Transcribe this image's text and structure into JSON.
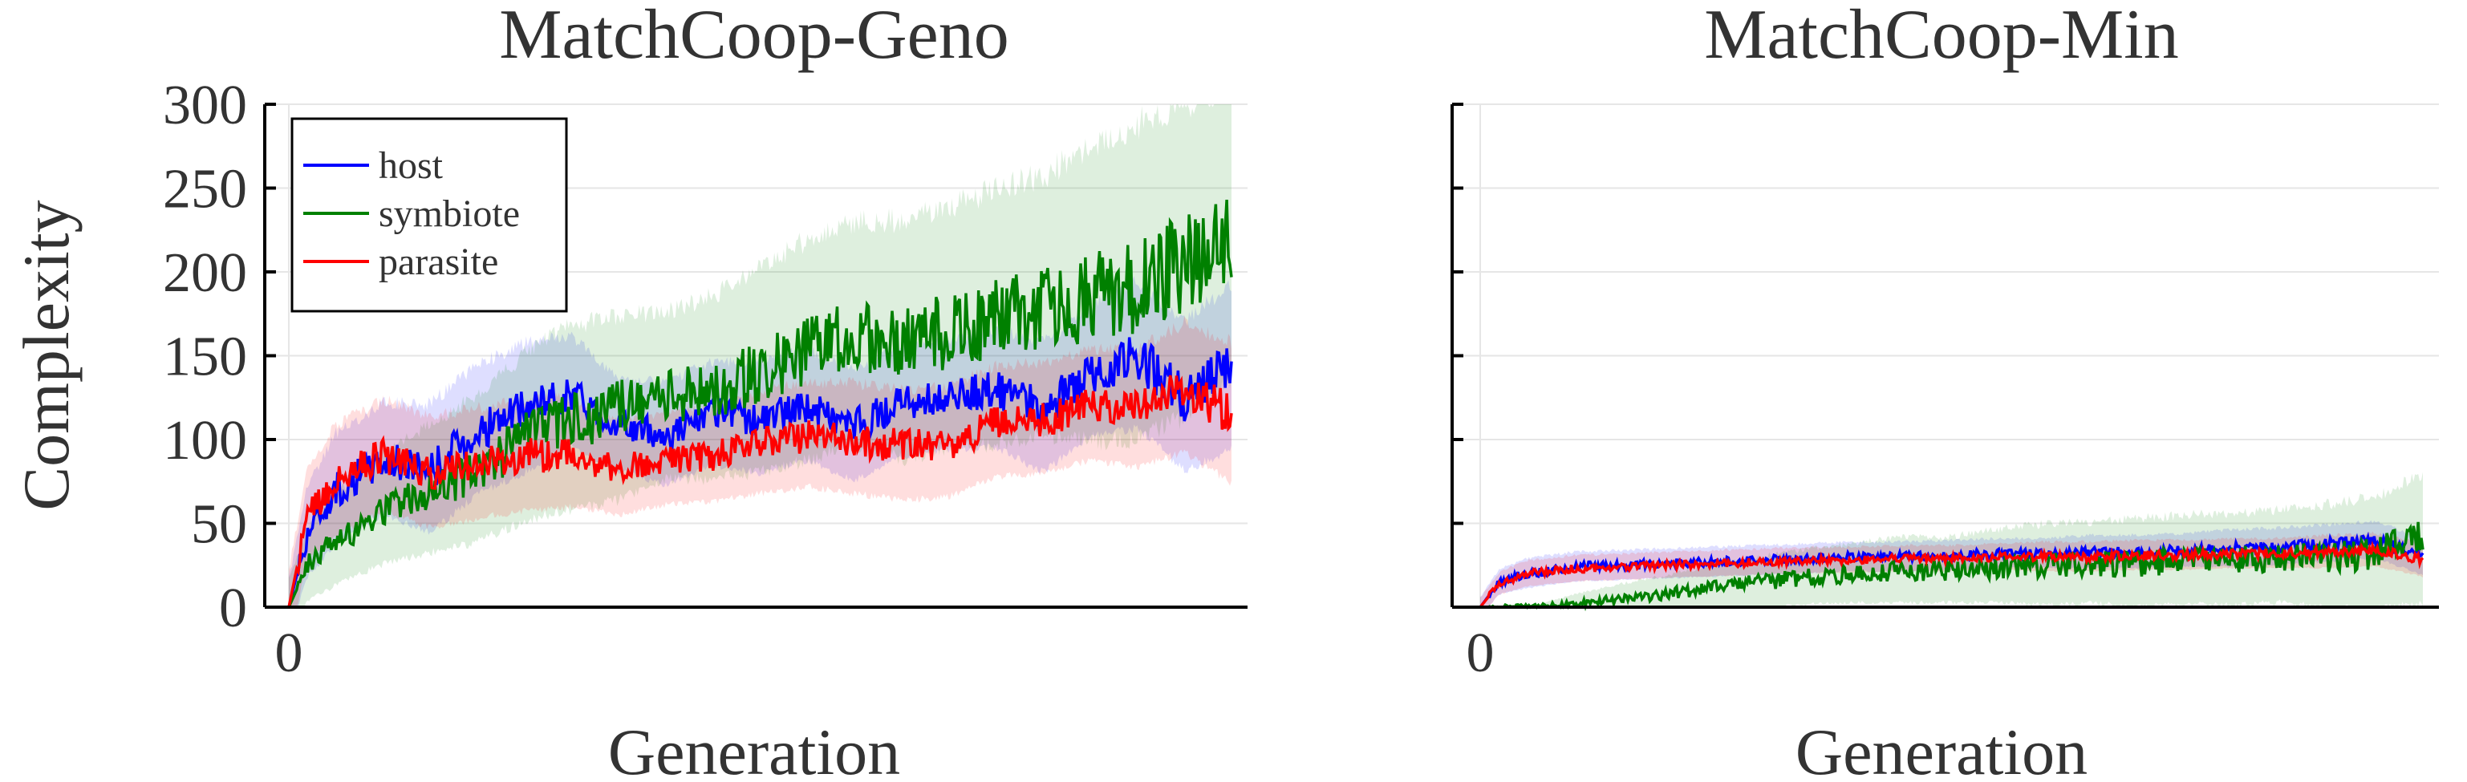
{
  "colors": {
    "host": "#0000ff",
    "symbiote": "#008000",
    "parasite": "#ff0000",
    "grid": "#e6e6e6",
    "axis": "#000000",
    "text": "#333333"
  },
  "chart_data": [
    {
      "type": "line",
      "title": "MatchCoop-Geno",
      "xlabel": "Generation",
      "ylabel": "Complexity",
      "ylim": [
        0,
        300
      ],
      "yticks": [
        "0",
        "50",
        "100",
        "150",
        "200",
        "250",
        "300"
      ],
      "xticks": [
        "0"
      ],
      "grid": true,
      "legend": {
        "placement": "top-left",
        "entries": [
          "host",
          "symbiote",
          "parasite"
        ]
      },
      "x": [
        0,
        0.02,
        0.05,
        0.1,
        0.15,
        0.2,
        0.25,
        0.3,
        0.35,
        0.4,
        0.45,
        0.5,
        0.55,
        0.6,
        0.65,
        0.7,
        0.75,
        0.8,
        0.85,
        0.9,
        0.95,
        1.0
      ],
      "series": [
        {
          "name": "host",
          "values": [
            0,
            45,
            70,
            88,
            82,
            105,
            118,
            128,
            108,
            103,
            115,
            112,
            120,
            108,
            122,
            126,
            130,
            118,
            140,
            150,
            125,
            142
          ],
          "band": [
            15,
            25,
            30,
            30,
            35,
            35,
            35,
            30,
            25,
            28,
            28,
            30,
            30,
            30,
            30,
            30,
            32,
            35,
            35,
            40,
            40,
            45
          ]
        },
        {
          "name": "symbiote",
          "values": [
            0,
            25,
            40,
            58,
            70,
            82,
            100,
            112,
            118,
            125,
            130,
            140,
            152,
            162,
            158,
            165,
            172,
            178,
            185,
            192,
            205,
            220
          ],
          "band": [
            15,
            20,
            25,
            30,
            35,
            40,
            45,
            50,
            50,
            45,
            50,
            55,
            60,
            60,
            65,
            65,
            70,
            70,
            80,
            85,
            85,
            80
          ]
        },
        {
          "name": "parasite",
          "values": [
            0,
            55,
            75,
            90,
            80,
            85,
            90,
            92,
            82,
            88,
            90,
            98,
            102,
            100,
            96,
            98,
            110,
            112,
            120,
            118,
            130,
            115
          ],
          "band": [
            20,
            25,
            30,
            30,
            30,
            30,
            30,
            30,
            25,
            25,
            25,
            28,
            28,
            30,
            30,
            30,
            30,
            30,
            30,
            32,
            35,
            38
          ]
        }
      ]
    },
    {
      "type": "line",
      "title": "MatchCoop-Min",
      "xlabel": "Generation",
      "ylabel": "",
      "ylim": [
        0,
        300
      ],
      "yticks": [],
      "xticks": [
        "0"
      ],
      "grid": true,
      "legend": null,
      "x": [
        0,
        0.02,
        0.05,
        0.1,
        0.15,
        0.2,
        0.25,
        0.3,
        0.35,
        0.4,
        0.45,
        0.5,
        0.55,
        0.6,
        0.65,
        0.7,
        0.75,
        0.8,
        0.85,
        0.9,
        0.95,
        1.0
      ],
      "series": [
        {
          "name": "host",
          "values": [
            0,
            15,
            20,
            24,
            25,
            26,
            27,
            28,
            29,
            30,
            30,
            31,
            32,
            32,
            33,
            33,
            34,
            35,
            36,
            38,
            40,
            30
          ],
          "band": [
            5,
            7,
            8,
            8,
            8,
            8,
            8,
            8,
            8,
            8,
            8,
            8,
            8,
            8,
            9,
            9,
            9,
            10,
            10,
            10,
            10,
            10
          ]
        },
        {
          "name": "symbiote",
          "values": [
            0,
            0,
            0,
            2,
            5,
            8,
            12,
            15,
            18,
            20,
            22,
            22,
            24,
            25,
            26,
            26,
            28,
            28,
            30,
            30,
            32,
            40
          ],
          "band": [
            0,
            0,
            0,
            5,
            8,
            10,
            12,
            14,
            15,
            16,
            18,
            18,
            20,
            22,
            22,
            24,
            24,
            25,
            25,
            28,
            30,
            35
          ]
        },
        {
          "name": "parasite",
          "values": [
            0,
            14,
            20,
            23,
            24,
            25,
            26,
            27,
            28,
            28,
            29,
            29,
            30,
            30,
            30,
            31,
            31,
            32,
            32,
            33,
            34,
            28
          ],
          "band": [
            5,
            6,
            7,
            7,
            7,
            7,
            7,
            7,
            7,
            7,
            7,
            7,
            7,
            8,
            8,
            8,
            8,
            8,
            8,
            9,
            9,
            9
          ]
        }
      ]
    }
  ]
}
